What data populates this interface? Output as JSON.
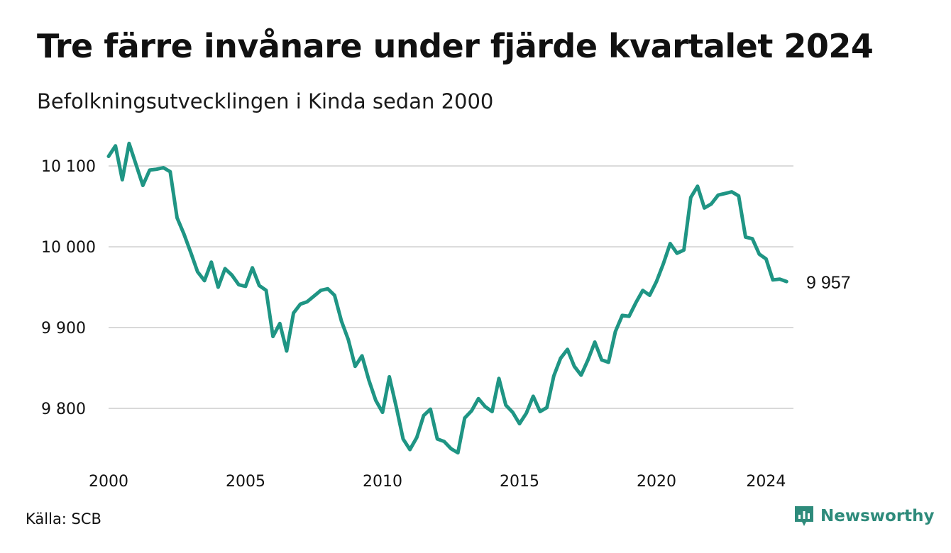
{
  "title": "Tre färre invånare under fjärde kvartalet 2024",
  "subtitle": "Befolkningsutvecklingen i Kinda sedan 2000",
  "source": "Källa: SCB",
  "brand": {
    "name": "Newsworthy",
    "icon": "newsworthy-logo-icon",
    "color": "#2e8b7b"
  },
  "chart_data": {
    "type": "line",
    "color": "#1f9584",
    "gridColor": "#d9d9d9",
    "grid": true,
    "xlim": [
      2000,
      2025
    ],
    "ylim": [
      9735,
      10130
    ],
    "yticks": [
      9800,
      9900,
      10000,
      10100
    ],
    "ytickLabels": [
      "9 800",
      "9 900",
      "10 000",
      "10 100"
    ],
    "xticks": [
      2000,
      2005,
      2010,
      2015,
      2020,
      2024
    ],
    "xtickLabels": [
      "2000",
      "2005",
      "2010",
      "2015",
      "2020",
      "2024"
    ],
    "endLabel": "9 957",
    "series": [
      {
        "x": [
          2000.0,
          2000.25,
          2000.5,
          2000.75,
          2001.0,
          2001.25,
          2001.5,
          2001.75,
          2002.0,
          2002.25,
          2002.5,
          2002.75,
          2003.0,
          2003.25,
          2003.5,
          2003.75,
          2004.0,
          2004.25,
          2004.5,
          2004.75,
          2005.0,
          2005.25,
          2005.5,
          2005.75,
          2006.0,
          2006.25,
          2006.5,
          2006.75,
          2007.0,
          2007.25,
          2007.5,
          2007.75,
          2008.0,
          2008.25,
          2008.5,
          2008.75,
          2009.0,
          2009.25,
          2009.5,
          2009.75,
          2010.0,
          2010.25,
          2010.5,
          2010.75,
          2011.0,
          2011.25,
          2011.5,
          2011.75,
          2012.0,
          2012.25,
          2012.5,
          2012.75,
          2013.0,
          2013.25,
          2013.5,
          2013.75,
          2014.0,
          2014.25,
          2014.5,
          2014.75,
          2015.0,
          2015.25,
          2015.5,
          2015.75,
          2016.0,
          2016.25,
          2016.5,
          2016.75,
          2017.0,
          2017.25,
          2017.5,
          2017.75,
          2018.0,
          2018.25,
          2018.5,
          2018.75,
          2019.0,
          2019.25,
          2019.5,
          2019.75,
          2020.0,
          2020.25,
          2020.5,
          2020.75,
          2021.0,
          2021.25,
          2021.5,
          2021.75,
          2022.0,
          2022.25,
          2022.5,
          2022.75,
          2023.0,
          2023.25,
          2023.5,
          2023.75,
          2024.0,
          2024.25,
          2024.5,
          2024.75
        ],
        "y": [
          10112,
          10125,
          10083,
          10128,
          10102,
          10076,
          10095,
          10096,
          10098,
          10093,
          10036,
          10016,
          9993,
          9969,
          9958,
          9981,
          9950,
          9973,
          9965,
          9953,
          9951,
          9974,
          9952,
          9946,
          9889,
          9905,
          9871,
          9918,
          9929,
          9932,
          9939,
          9946,
          9948,
          9940,
          9908,
          9885,
          9852,
          9865,
          9835,
          9810,
          9795,
          9839,
          9802,
          9762,
          9749,
          9764,
          9791,
          9799,
          9762,
          9759,
          9750,
          9745,
          9788,
          9797,
          9812,
          9802,
          9796,
          9837,
          9804,
          9795,
          9781,
          9794,
          9815,
          9796,
          9801,
          9840,
          9862,
          9873,
          9852,
          9841,
          9860,
          9882,
          9860,
          9857,
          9895,
          9915,
          9914,
          9931,
          9946,
          9940,
          9957,
          9979,
          10004,
          9992,
          9996,
          10061,
          10075,
          10048,
          10053,
          10064,
          10066,
          10068,
          10063,
          10012,
          10010,
          9991,
          9985,
          9959,
          9960,
          9957
        ]
      }
    ]
  }
}
